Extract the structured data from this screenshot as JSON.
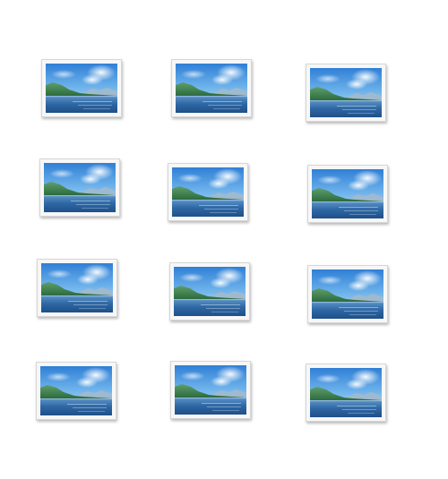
{
  "grid": {
    "icon": "landscape-photo-icon",
    "columns": 3,
    "rows": 4,
    "items": [
      {
        "icon": "landscape-photo-icon"
      },
      {
        "icon": "landscape-photo-icon"
      },
      {
        "icon": "landscape-photo-icon"
      },
      {
        "icon": "landscape-photo-icon"
      },
      {
        "icon": "landscape-photo-icon"
      },
      {
        "icon": "landscape-photo-icon"
      },
      {
        "icon": "landscape-photo-icon"
      },
      {
        "icon": "landscape-photo-icon"
      },
      {
        "icon": "landscape-photo-icon"
      },
      {
        "icon": "landscape-photo-icon"
      },
      {
        "icon": "landscape-photo-icon"
      },
      {
        "icon": "landscape-photo-icon"
      }
    ]
  },
  "colors": {
    "background": "#ffffff",
    "frame": "#f7f7f7",
    "sky": "#3d8fe0",
    "water": "#2d6aa8",
    "hills": "#3a7d4a"
  }
}
